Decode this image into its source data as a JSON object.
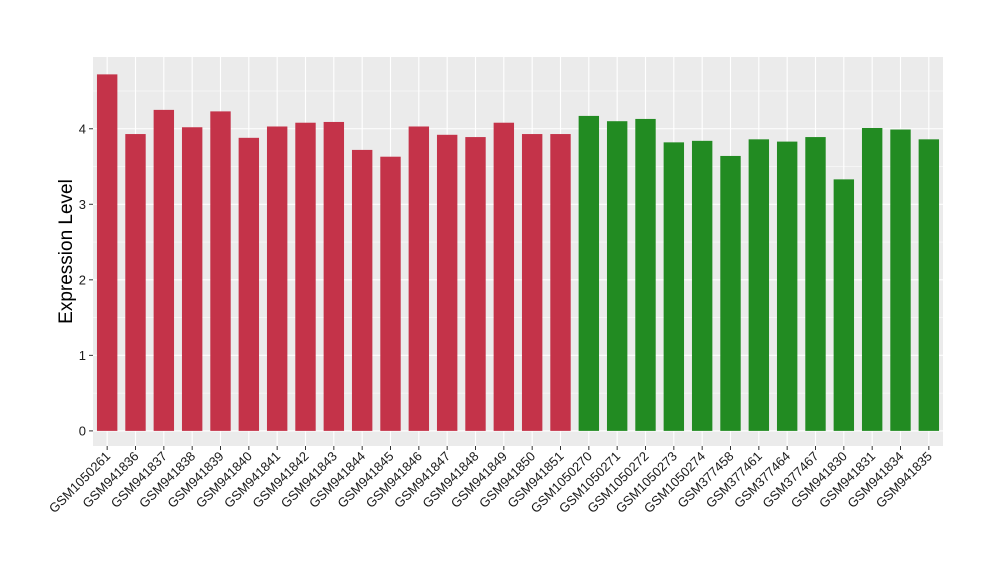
{
  "chart_data": {
    "type": "bar",
    "title": "",
    "xlabel": "",
    "ylabel": "Expression Level",
    "ylim": [
      -0.2,
      4.95
    ],
    "yticks": [
      0,
      1,
      2,
      3,
      4
    ],
    "grid": true,
    "background": "#ebebeb",
    "categories": [
      "GSM1050261",
      "GSM941836",
      "GSM941837",
      "GSM941838",
      "GSM941839",
      "GSM941840",
      "GSM941841",
      "GSM941842",
      "GSM941843",
      "GSM941844",
      "GSM941845",
      "GSM941846",
      "GSM941847",
      "GSM941848",
      "GSM941849",
      "GSM941850",
      "GSM941851",
      "GSM1050270",
      "GSM1050271",
      "GSM1050272",
      "GSM1050273",
      "GSM1050274",
      "GSM377458",
      "GSM377461",
      "GSM377464",
      "GSM377467",
      "GSM941830",
      "GSM941831",
      "GSM941834",
      "GSM941835"
    ],
    "values": [
      4.72,
      3.93,
      4.25,
      4.02,
      4.23,
      3.88,
      4.03,
      4.08,
      4.09,
      3.72,
      3.63,
      4.03,
      3.92,
      3.89,
      4.08,
      3.93,
      3.93,
      4.17,
      4.1,
      4.13,
      3.82,
      3.84,
      3.64,
      3.86,
      3.83,
      3.89,
      3.33,
      4.01,
      3.99,
      3.86
    ],
    "colors": [
      "#c43349",
      "#c43349",
      "#c43349",
      "#c43349",
      "#c43349",
      "#c43349",
      "#c43349",
      "#c43349",
      "#c43349",
      "#c43349",
      "#c43349",
      "#c43349",
      "#c43349",
      "#c43349",
      "#c43349",
      "#c43349",
      "#c43349",
      "#228b22",
      "#228b22",
      "#228b22",
      "#228b22",
      "#228b22",
      "#228b22",
      "#228b22",
      "#228b22",
      "#228b22",
      "#228b22",
      "#228b22",
      "#228b22",
      "#228b22"
    ]
  }
}
